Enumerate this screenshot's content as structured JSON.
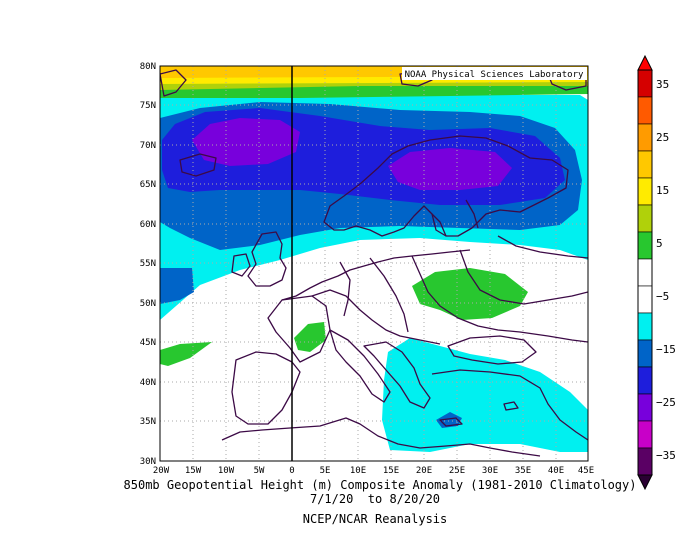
{
  "credit": "NOAA Physical Sciences Laboratory",
  "caption": {
    "line1": "850mb Geopotential Height (m) Composite Anomaly (1981-2010 Climatology)",
    "line2": "7/1/20  to 8/20/20",
    "line3": "NCEP/NCAR Reanalysis"
  },
  "map": {
    "lon_range": [
      -20,
      45
    ],
    "lat_range": [
      30,
      80
    ],
    "lon_ticks": [
      "20W",
      "15W",
      "10W",
      "5W",
      "0",
      "5E",
      "10E",
      "15E",
      "20E",
      "25E",
      "30E",
      "35E",
      "40E",
      "45E"
    ],
    "lat_ticks": [
      "30N",
      "35N",
      "40N",
      "45N",
      "50N",
      "55N",
      "60N",
      "65N",
      "70N",
      "75N",
      "80N"
    ]
  },
  "colorbar": {
    "labels": [
      "35",
      "25",
      "15",
      "5",
      "−5",
      "−15",
      "−25",
      "−35"
    ],
    "colors": [
      "#d50000",
      "#ff5a00",
      "#ff9b00",
      "#ffc800",
      "#ffeb00",
      "#b0d10a",
      "#28c72f",
      "#ffffff",
      "#ffffff",
      "#00f0f0",
      "#0064c8",
      "#1e1edc",
      "#7800dc",
      "#c800c8",
      "#5a0064"
    ]
  }
}
